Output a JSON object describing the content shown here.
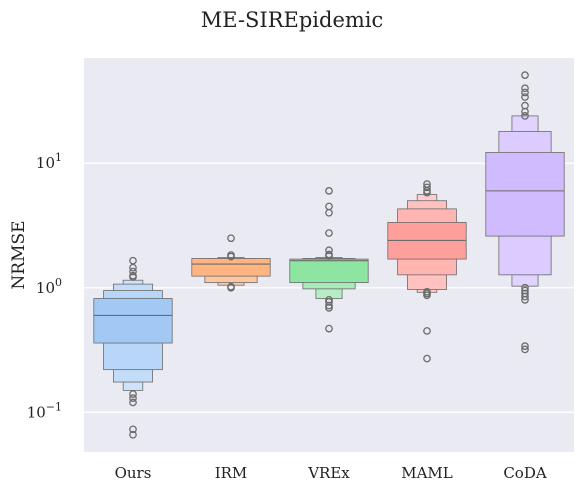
{
  "chart_data": {
    "type": "boxen",
    "title": "ME-SIREpidemic",
    "xlabel": "",
    "ylabel": "NRMSE",
    "yscale": "log",
    "ylim": [
      0.048,
      70
    ],
    "grid": true,
    "yticks": [
      {
        "value": 0.1,
        "base": "10",
        "exp": "−1"
      },
      {
        "value": 1,
        "base": "10",
        "exp": "0"
      },
      {
        "value": 10,
        "base": "10",
        "exp": "1"
      }
    ],
    "categories": [
      "Ours",
      "IRM",
      "VREx",
      "MAML",
      "CoDA"
    ],
    "series": [
      {
        "category": "Ours",
        "color": "#a1c9f4",
        "median": 0.6,
        "levels": [
          [
            0.36,
            0.82
          ],
          [
            0.22,
            0.95
          ],
          [
            0.175,
            1.07
          ],
          [
            0.15,
            1.15
          ]
        ],
        "outliers": [
          1.65,
          1.45,
          1.35,
          1.25,
          1.22,
          0.14,
          0.13,
          0.12,
          0.073,
          0.066
        ]
      },
      {
        "category": "IRM",
        "color": "#ffb482",
        "median": 1.55,
        "levels": [
          [
            1.24,
            1.72
          ],
          [
            1.1,
            1.72
          ],
          [
            1.05,
            1.75
          ]
        ],
        "outliers": [
          2.5,
          1.83,
          1.78,
          1.02,
          1.0
        ]
      },
      {
        "category": "VREx",
        "color": "#8de5a1",
        "median": 1.65,
        "levels": [
          [
            1.1,
            1.7
          ],
          [
            0.98,
            1.72
          ],
          [
            0.82,
            1.75
          ]
        ],
        "outliers": [
          6.0,
          4.5,
          4.0,
          2.75,
          2.0,
          1.85,
          1.8,
          0.8,
          0.77,
          0.72,
          0.69,
          0.47
        ]
      },
      {
        "category": "MAML",
        "color": "#ff9f9b",
        "median": 2.4,
        "levels": [
          [
            1.7,
            3.35
          ],
          [
            1.27,
            4.3
          ],
          [
            0.97,
            5.0
          ],
          [
            0.92,
            5.6
          ]
        ],
        "outliers": [
          6.8,
          6.4,
          6.0,
          5.8,
          0.93,
          0.9,
          0.87,
          0.45,
          0.27
        ]
      },
      {
        "category": "CoDA",
        "color": "#d0bbff",
        "median": 6.0,
        "levels": [
          [
            2.6,
            12.2
          ],
          [
            1.27,
            18.0
          ],
          [
            1.03,
            24.0
          ]
        ],
        "outliers": [
          51,
          40,
          37,
          34,
          29,
          26,
          24,
          1.0,
          0.95,
          0.9,
          0.85,
          0.8,
          0.34,
          0.32
        ]
      }
    ]
  }
}
